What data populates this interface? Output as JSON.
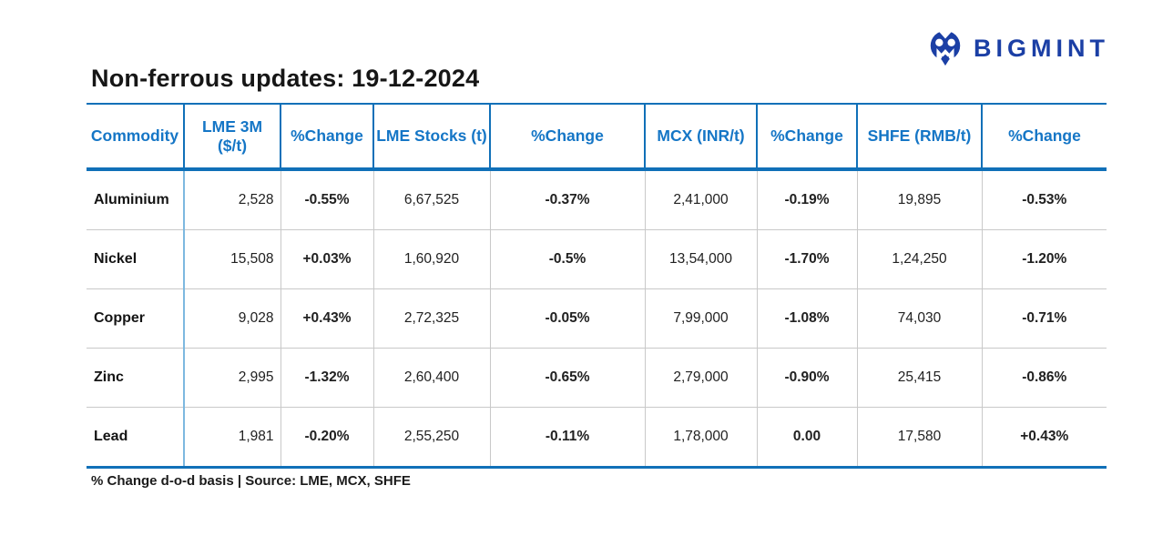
{
  "brand": {
    "name": "BIGMINT"
  },
  "title": "Non-ferrous updates: 19-12-2024",
  "table": {
    "columns": [
      "Commodity",
      "LME 3M ($/t)",
      "%Change",
      "LME Stocks (t)",
      "%Change",
      "MCX (INR/t)",
      "%Change",
      "SHFE (RMB/t)",
      "%Change"
    ],
    "rows": [
      {
        "commodity": "Aluminium",
        "lme_3m": "2,528",
        "lme_3m_pct": {
          "value": "-0.55%",
          "trend": "down"
        },
        "lme_stocks": "6,67,525",
        "lme_stocks_pct": {
          "value": "-0.37%",
          "trend": "down"
        },
        "mcx": "2,41,000",
        "mcx_pct": {
          "value": "-0.19%",
          "trend": "down"
        },
        "shfe": "19,895",
        "shfe_pct": {
          "value": "-0.53%",
          "trend": "down"
        }
      },
      {
        "commodity": "Nickel",
        "lme_3m": "15,508",
        "lme_3m_pct": {
          "value": "+0.03%",
          "trend": "up"
        },
        "lme_stocks": "1,60,920",
        "lme_stocks_pct": {
          "value": "-0.5%",
          "trend": "down"
        },
        "mcx": "13,54,000",
        "mcx_pct": {
          "value": "-1.70%",
          "trend": "down"
        },
        "shfe": "1,24,250",
        "shfe_pct": {
          "value": "-1.20%",
          "trend": "down"
        }
      },
      {
        "commodity": "Copper",
        "lme_3m": "9,028",
        "lme_3m_pct": {
          "value": "+0.43%",
          "trend": "up"
        },
        "lme_stocks": "2,72,325",
        "lme_stocks_pct": {
          "value": "-0.05%",
          "trend": "down"
        },
        "mcx": "7,99,000",
        "mcx_pct": {
          "value": "-1.08%",
          "trend": "down"
        },
        "shfe": "74,030",
        "shfe_pct": {
          "value": "-0.71%",
          "trend": "down"
        }
      },
      {
        "commodity": "Zinc",
        "lme_3m": "2,995",
        "lme_3m_pct": {
          "value": "-1.32%",
          "trend": "down"
        },
        "lme_stocks": "2,60,400",
        "lme_stocks_pct": {
          "value": "-0.65%",
          "trend": "down"
        },
        "mcx": "2,79,000",
        "mcx_pct": {
          "value": "-0.90%",
          "trend": "down"
        },
        "shfe": "25,415",
        "shfe_pct": {
          "value": "-0.86%",
          "trend": "down"
        }
      },
      {
        "commodity": "Lead",
        "lme_3m": "1,981",
        "lme_3m_pct": {
          "value": "-0.20%",
          "trend": "down"
        },
        "lme_stocks": "2,55,250",
        "lme_stocks_pct": {
          "value": "-0.11%",
          "trend": "down"
        },
        "mcx": "1,78,000",
        "mcx_pct": {
          "value": "0.00",
          "trend": "flat"
        },
        "shfe": "17,580",
        "shfe_pct": {
          "value": "+0.43%",
          "trend": "up"
        }
      }
    ]
  },
  "footnote": "% Change d-o-d basis | Source: LME, MCX, SHFE",
  "colors": {
    "accent_blue": "#1070b8",
    "header_text": "#1576c6",
    "separator_blue": "#7db8e0",
    "negative": "#ee2129",
    "positive": "#10af5d",
    "brand_navy": "#1b3fa5"
  }
}
